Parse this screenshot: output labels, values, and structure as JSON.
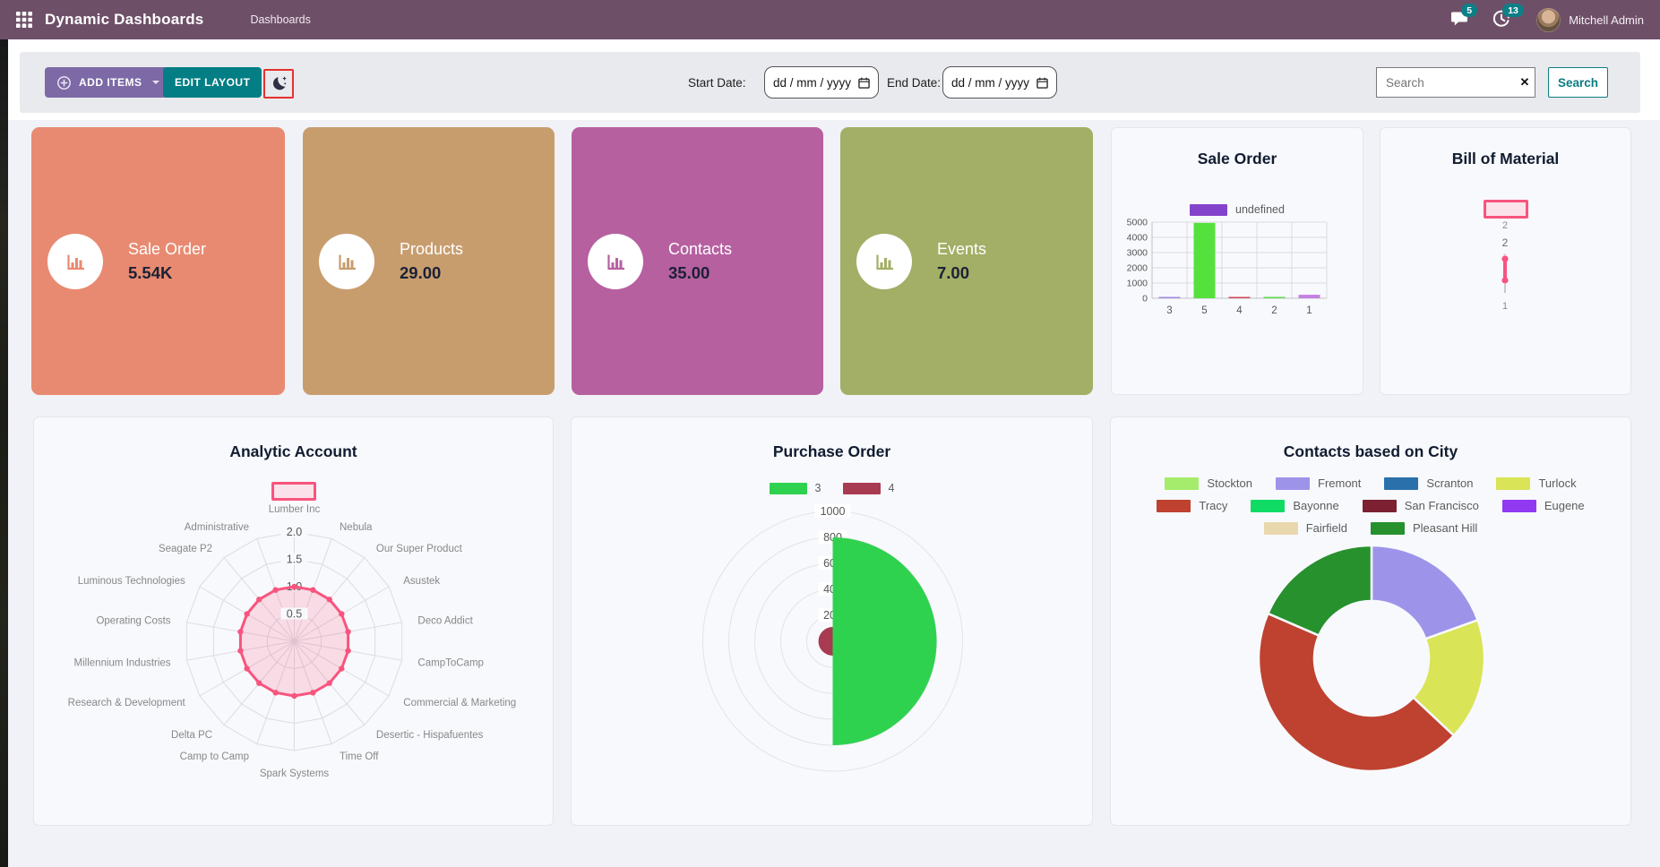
{
  "navbar": {
    "app_title": "Dynamic Dashboards",
    "menu_item": "Dashboards",
    "messages_badge": "5",
    "activities_badge": "13",
    "user_name": "Mitchell Admin",
    "bg_color": "#6e4f68",
    "badge_color": "#0d7f87"
  },
  "toolbar": {
    "add_items_label": "ADD ITEMS",
    "edit_layout_label": "EDIT LAYOUT",
    "start_date_label": "Start Date:",
    "end_date_label": "End Date:",
    "date_placeholder": "dd / mm / yyyy",
    "search_placeholder": "Search",
    "search_button_label": "Search",
    "add_items_color": "#7c69a6",
    "edit_layout_color": "#027e84",
    "moon_button_border_color": "#e5322d"
  },
  "icons": {
    "clear_search": "✕"
  },
  "kpis": [
    {
      "label": "Sale Order",
      "value": "5.54K",
      "color": "#e88a71"
    },
    {
      "label": "Products",
      "value": "29.00",
      "color": "#c89d6e"
    },
    {
      "label": "Contacts",
      "value": "35.00",
      "color": "#b660a0"
    },
    {
      "label": "Events",
      "value": "7.00",
      "color": "#a3ae66"
    }
  ],
  "chart_data": [
    {
      "id": "sale-order-bar",
      "type": "bar",
      "title": "Sale Order",
      "legend": [
        {
          "label": "undefined",
          "color": "#8344cb"
        }
      ],
      "categories": [
        "3",
        "5",
        "4",
        "2",
        "1"
      ],
      "values": [
        40,
        4950,
        40,
        90,
        230
      ],
      "bar_colors": [
        "#a18ae2",
        "#55e13d",
        "#d4455e",
        "#5fdc4a",
        "#c57fe3"
      ],
      "ylim": [
        0,
        5000
      ],
      "yticks": [
        "0",
        "1000",
        "2000",
        "3000",
        "4000",
        "5000"
      ],
      "grid": true,
      "legend_position": "top"
    },
    {
      "id": "bill-of-material",
      "type": "line",
      "title": "Bill of Material",
      "line_color": "#f8547e",
      "fill_color": "#fbe2ea",
      "axis_labels_visible": [
        "2",
        "2",
        "1",
        "1"
      ],
      "values": [
        2,
        1
      ]
    },
    {
      "id": "analytic-account-radar",
      "type": "radar",
      "title": "Analytic Account",
      "axes": [
        "Lumber Inc",
        "Nebula",
        "Our Super Product",
        "Asustek",
        "Deco Addict",
        "CampToCamp",
        "Commercial & Marketing",
        "Desertic - Hispafuentes",
        "Time Off",
        "Spark Systems",
        "Camp to Camp",
        "Delta PC",
        "Research & Development",
        "Millennium Industries",
        "Operating Costs",
        "Luminous Technologies",
        "Seagate P2",
        "Administrative"
      ],
      "series": [
        {
          "name": "",
          "color": "#f8547e",
          "fill": "rgba(248,84,126,0.18)",
          "values": [
            1,
            1,
            1,
            1,
            1,
            1,
            1,
            1,
            1,
            1,
            1,
            1,
            1,
            1,
            1,
            1,
            1,
            1
          ]
        }
      ],
      "rticks": [
        "0.5",
        "1.0",
        "1.5",
        "2.0"
      ],
      "rmax": 2.0,
      "grid": true
    },
    {
      "id": "purchase-order-polar",
      "type": "pie",
      "variant": "polar-area",
      "title": "Purchase Order",
      "labels": [
        "3",
        "4"
      ],
      "colors": [
        "#2fd24f",
        "#a73b51"
      ],
      "values": [
        800,
        110
      ],
      "rticks": [
        "200",
        "400",
        "600",
        "800",
        "1000"
      ],
      "rmax": 1000,
      "legend_position": "top"
    },
    {
      "id": "contacts-city-doughnut",
      "type": "pie",
      "variant": "doughnut",
      "title": "Contacts based on City",
      "labels": [
        "Stockton",
        "Fremont",
        "Scranton",
        "Turlock",
        "Tracy",
        "Bayonne",
        "San Francisco",
        "Eugene",
        "Fairfield",
        "Pleasant Hill"
      ],
      "colors": [
        "#a5ec6d",
        "#9d94ea",
        "#2a70ab",
        "#d9e456",
        "#bf4130",
        "#10dc65",
        "#7c2032",
        "#9138f1",
        "#e9d8ad",
        "#27912e"
      ],
      "values_percent": [
        0,
        19.5,
        0,
        17.5,
        44.5,
        0,
        0,
        0,
        0,
        18.5
      ],
      "legend_position": "top",
      "legend_rows": [
        [
          0,
          1,
          2,
          3
        ],
        [
          4,
          5,
          6,
          7
        ],
        [
          8,
          9
        ]
      ]
    }
  ]
}
